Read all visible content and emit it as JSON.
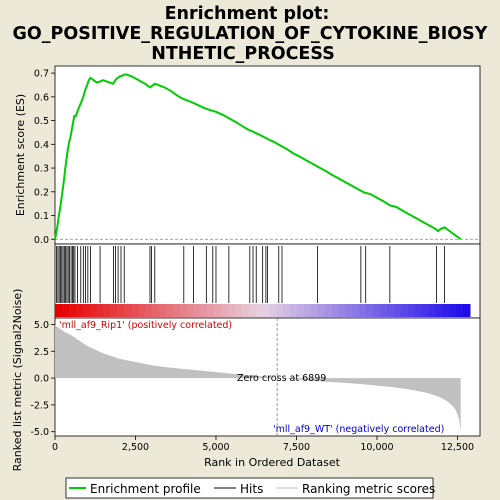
{
  "title_line1": "Enrichment plot:",
  "title_line2": "GO_POSITIVE_REGULATION_OF_CYTOKINE_BIOSY",
  "title_line3": "NTHETIC_PROCESS",
  "legend": {
    "enrichment_profile": "Enrichment profile",
    "hits": "Hits",
    "ranking_metric": "Ranking metric scores"
  },
  "colors": {
    "enrichment_line": "#00cc00",
    "hits": "#000000",
    "metric_fill": "#c0c0c0",
    "zero_cross_line": "#808080",
    "positive_label": "#d00000",
    "negative_label": "#0000c0"
  },
  "annotations": {
    "positive": "'mll_af9_Rip1' (positively correlated)",
    "negative": "'mll_af9_WT' (negatively correlated)",
    "zero_cross": "Zero cross at 6899"
  },
  "chart_data": {
    "type": "line",
    "xlabel": "Rank in Ordered Dataset",
    "x_ticks": [
      "0",
      "2,500",
      "5,000",
      "7,500",
      "10,000",
      "12,500"
    ],
    "x_tick_values": [
      0,
      2500,
      5000,
      7500,
      10000,
      12500
    ],
    "xlim": [
      0,
      13200
    ],
    "es_panel": {
      "ylabel": "Enrichment score (ES)",
      "ylim": [
        -0.02,
        0.73
      ],
      "y_ticks": [
        "0.0",
        "0.1",
        "0.2",
        "0.3",
        "0.4",
        "0.5",
        "0.6",
        "0.7"
      ],
      "y_tick_values": [
        0.0,
        0.1,
        0.2,
        0.3,
        0.4,
        0.5,
        0.6,
        0.7
      ],
      "series": [
        {
          "name": "Enrichment profile",
          "x": [
            0,
            30,
            80,
            120,
            160,
            200,
            240,
            280,
            320,
            360,
            400,
            440,
            480,
            520,
            560,
            600,
            650,
            700,
            760,
            820,
            880,
            940,
            1000,
            1050,
            1100,
            1200,
            1300,
            1400,
            1500,
            1600,
            1700,
            1800,
            1850,
            1900,
            2000,
            2100,
            2200,
            2400,
            2600,
            2800,
            2900,
            2950,
            3000,
            3100,
            3200,
            3400,
            3600,
            3800,
            4000,
            4200,
            4400,
            4600,
            4800,
            5000,
            5200,
            5400,
            5600,
            5800,
            6000,
            6200,
            6400,
            6600,
            6800,
            7000,
            7200,
            7400,
            7600,
            7800,
            8000,
            8200,
            8400,
            8600,
            8800,
            9000,
            9200,
            9400,
            9600,
            9800,
            10000,
            10200,
            10400,
            10600,
            10800,
            11000,
            11200,
            11400,
            11600,
            11800,
            11850,
            11900,
            12000,
            12100,
            12200,
            12300,
            12400,
            12500,
            12550,
            12600
          ],
          "y": [
            0.0,
            0.02,
            0.06,
            0.1,
            0.13,
            0.17,
            0.21,
            0.25,
            0.3,
            0.34,
            0.38,
            0.41,
            0.43,
            0.46,
            0.49,
            0.52,
            0.52,
            0.54,
            0.56,
            0.58,
            0.6,
            0.63,
            0.65,
            0.67,
            0.68,
            0.67,
            0.66,
            0.665,
            0.67,
            0.665,
            0.66,
            0.655,
            0.665,
            0.675,
            0.685,
            0.69,
            0.695,
            0.685,
            0.67,
            0.655,
            0.645,
            0.64,
            0.645,
            0.655,
            0.65,
            0.64,
            0.625,
            0.605,
            0.59,
            0.58,
            0.568,
            0.555,
            0.545,
            0.537,
            0.525,
            0.51,
            0.495,
            0.478,
            0.462,
            0.45,
            0.437,
            0.423,
            0.41,
            0.395,
            0.38,
            0.362,
            0.348,
            0.333,
            0.318,
            0.303,
            0.288,
            0.272,
            0.257,
            0.242,
            0.227,
            0.212,
            0.197,
            0.19,
            0.175,
            0.16,
            0.143,
            0.136,
            0.12,
            0.105,
            0.09,
            0.075,
            0.06,
            0.045,
            0.04,
            0.035,
            0.045,
            0.05,
            0.04,
            0.03,
            0.02,
            0.01,
            0.005,
            0.0
          ]
        }
      ]
    },
    "hits_x": [
      50,
      90,
      130,
      170,
      210,
      250,
      290,
      330,
      370,
      410,
      450,
      500,
      540,
      580,
      620,
      700,
      800,
      880,
      950,
      1020,
      1100,
      1400,
      1820,
      1880,
      1960,
      2050,
      2150,
      2950,
      3000,
      3100,
      4000,
      4300,
      4700,
      4900,
      5000,
      5400,
      6050,
      6150,
      6250,
      6450,
      6550,
      6600,
      6950,
      7050,
      8150,
      9500,
      9650,
      10400,
      11850,
      12100
    ],
    "metric_panel": {
      "ylabel": "Ranked list metric (Signal2Noise)",
      "ylim": [
        -5.4,
        5.6
      ],
      "y_ticks": [
        "5.0",
        "2.5",
        "0.0",
        "-2.5",
        "-5.0"
      ],
      "y_tick_values": [
        5.0,
        2.5,
        0.0,
        -2.5,
        -5.0
      ],
      "x": [
        0,
        50,
        100,
        200,
        300,
        500,
        700,
        1000,
        1500,
        2000,
        2500,
        3000,
        3500,
        4000,
        4500,
        5000,
        5500,
        6000,
        6500,
        6899,
        7500,
        8000,
        8500,
        9000,
        9500,
        10000,
        10500,
        11000,
        11500,
        11800,
        12000,
        12200,
        12350,
        12450,
        12550,
        12600
      ],
      "y": [
        5.0,
        4.8,
        4.7,
        4.5,
        4.3,
        4.0,
        3.6,
        3.0,
        2.3,
        1.8,
        1.5,
        1.2,
        1.0,
        0.85,
        0.7,
        0.55,
        0.4,
        0.28,
        0.15,
        0.0,
        -0.12,
        -0.25,
        -0.35,
        -0.45,
        -0.55,
        -0.7,
        -0.85,
        -1.05,
        -1.35,
        -1.6,
        -1.85,
        -2.2,
        -2.6,
        -3.0,
        -3.8,
        -5.0
      ],
      "zero_cross": 6899
    }
  }
}
